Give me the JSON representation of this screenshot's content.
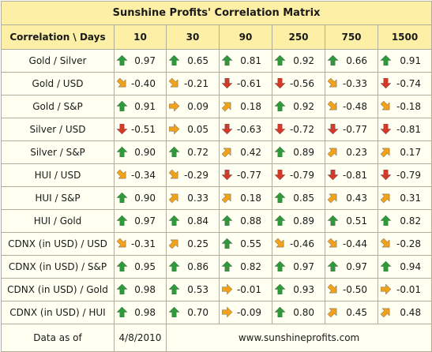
{
  "title": "Sunshine Profits' Correlation Matrix",
  "header": {
    "corner": "Correlation \\ Days",
    "days": [
      "10",
      "30",
      "90",
      "250",
      "750",
      "1500"
    ]
  },
  "colors": {
    "up": "#2e9a3a",
    "down": "#d43a2a",
    "up_right": "#f2a21a",
    "right": "#f2a21a",
    "down_right": "#f2a21a",
    "header_bg": "#fdf0a6",
    "cell_bg": "#fffff2"
  },
  "rows": [
    {
      "label": "Gold / Silver",
      "cells": [
        {
          "v": "0.97",
          "a": "up"
        },
        {
          "v": "0.65",
          "a": "up"
        },
        {
          "v": "0.81",
          "a": "up"
        },
        {
          "v": "0.92",
          "a": "up"
        },
        {
          "v": "0.66",
          "a": "up"
        },
        {
          "v": "0.91",
          "a": "up"
        }
      ]
    },
    {
      "label": "Gold / USD",
      "cells": [
        {
          "v": "-0.40",
          "a": "down_right"
        },
        {
          "v": "-0.21",
          "a": "down_right"
        },
        {
          "v": "-0.61",
          "a": "down"
        },
        {
          "v": "-0.56",
          "a": "down"
        },
        {
          "v": "-0.33",
          "a": "down_right"
        },
        {
          "v": "-0.74",
          "a": "down"
        }
      ]
    },
    {
      "label": "Gold / S&P",
      "cells": [
        {
          "v": "0.91",
          "a": "up"
        },
        {
          "v": "0.09",
          "a": "right"
        },
        {
          "v": "0.18",
          "a": "up_right"
        },
        {
          "v": "0.92",
          "a": "up"
        },
        {
          "v": "-0.48",
          "a": "down_right"
        },
        {
          "v": "-0.18",
          "a": "down_right"
        }
      ]
    },
    {
      "label": "Silver / USD",
      "cells": [
        {
          "v": "-0.51",
          "a": "down"
        },
        {
          "v": "0.05",
          "a": "right"
        },
        {
          "v": "-0.63",
          "a": "down"
        },
        {
          "v": "-0.72",
          "a": "down"
        },
        {
          "v": "-0.77",
          "a": "down"
        },
        {
          "v": "-0.81",
          "a": "down"
        }
      ]
    },
    {
      "label": "Silver / S&P",
      "cells": [
        {
          "v": "0.90",
          "a": "up"
        },
        {
          "v": "0.72",
          "a": "up"
        },
        {
          "v": "0.42",
          "a": "up_right"
        },
        {
          "v": "0.89",
          "a": "up"
        },
        {
          "v": "0.23",
          "a": "up_right"
        },
        {
          "v": "0.17",
          "a": "up_right"
        }
      ]
    },
    {
      "label": "HUI / USD",
      "cells": [
        {
          "v": "-0.34",
          "a": "down_right"
        },
        {
          "v": "-0.29",
          "a": "down_right"
        },
        {
          "v": "-0.77",
          "a": "down"
        },
        {
          "v": "-0.79",
          "a": "down"
        },
        {
          "v": "-0.81",
          "a": "down"
        },
        {
          "v": "-0.79",
          "a": "down"
        }
      ]
    },
    {
      "label": "HUI / S&P",
      "cells": [
        {
          "v": "0.90",
          "a": "up"
        },
        {
          "v": "0.33",
          "a": "up_right"
        },
        {
          "v": "0.18",
          "a": "up_right"
        },
        {
          "v": "0.85",
          "a": "up"
        },
        {
          "v": "0.43",
          "a": "up_right"
        },
        {
          "v": "0.31",
          "a": "up_right"
        }
      ]
    },
    {
      "label": "HUI / Gold",
      "cells": [
        {
          "v": "0.97",
          "a": "up"
        },
        {
          "v": "0.84",
          "a": "up"
        },
        {
          "v": "0.88",
          "a": "up"
        },
        {
          "v": "0.89",
          "a": "up"
        },
        {
          "v": "0.51",
          "a": "up"
        },
        {
          "v": "0.82",
          "a": "up"
        }
      ]
    },
    {
      "label": "CDNX (in USD) / USD",
      "cells": [
        {
          "v": "-0.31",
          "a": "down_right"
        },
        {
          "v": "0.25",
          "a": "up_right"
        },
        {
          "v": "0.55",
          "a": "up"
        },
        {
          "v": "-0.46",
          "a": "down_right"
        },
        {
          "v": "-0.44",
          "a": "down_right"
        },
        {
          "v": "-0.28",
          "a": "down_right"
        }
      ]
    },
    {
      "label": "CDNX (in USD) / S&P",
      "cells": [
        {
          "v": "0.95",
          "a": "up"
        },
        {
          "v": "0.86",
          "a": "up"
        },
        {
          "v": "0.82",
          "a": "up"
        },
        {
          "v": "0.97",
          "a": "up"
        },
        {
          "v": "0.97",
          "a": "up"
        },
        {
          "v": "0.94",
          "a": "up"
        }
      ]
    },
    {
      "label": "CDNX (in USD) / Gold",
      "cells": [
        {
          "v": "0.98",
          "a": "up"
        },
        {
          "v": "0.53",
          "a": "up"
        },
        {
          "v": "-0.01",
          "a": "right"
        },
        {
          "v": "0.93",
          "a": "up"
        },
        {
          "v": "-0.50",
          "a": "down_right"
        },
        {
          "v": "-0.01",
          "a": "right"
        }
      ]
    },
    {
      "label": "CDNX (in USD) / HUI",
      "cells": [
        {
          "v": "0.98",
          "a": "up"
        },
        {
          "v": "0.70",
          "a": "up"
        },
        {
          "v": "-0.09",
          "a": "right"
        },
        {
          "v": "0.80",
          "a": "up"
        },
        {
          "v": "0.45",
          "a": "up_right"
        },
        {
          "v": "0.48",
          "a": "up_right"
        }
      ]
    }
  ],
  "footer": {
    "data_as_of_label": "Data as of",
    "date": "4/8/2010",
    "website": "www.sunshineprofits.com"
  }
}
